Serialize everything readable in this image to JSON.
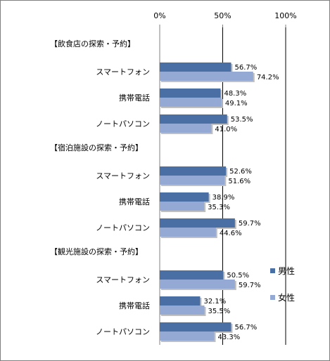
{
  "chart_data": {
    "type": "bar",
    "orientation": "horizontal",
    "xlim": [
      0,
      100
    ],
    "x_ticks": [
      "0%",
      "50%",
      "100%"
    ],
    "grid": true,
    "legend_position": "right",
    "groups": [
      {
        "label": "【飲食店の探索・予約】",
        "categories": [
          {
            "label": "スマートフォン",
            "male": 56.7,
            "female": 74.2,
            "male_text": "56.7%",
            "female_text": "74.2%"
          },
          {
            "label": "携帯電話",
            "male": 48.3,
            "female": 49.1,
            "male_text": "48.3%",
            "female_text": "49.1%"
          },
          {
            "label": "ノートパソコン",
            "male": 53.5,
            "female": 41.0,
            "male_text": "53.5%",
            "female_text": "41.0%"
          }
        ]
      },
      {
        "label": "【宿泊施設の探索・予約】",
        "categories": [
          {
            "label": "スマートフォン",
            "male": 52.6,
            "female": 51.6,
            "male_text": "52.6%",
            "female_text": "51.6%"
          },
          {
            "label": "携帯電話",
            "male": 38.9,
            "female": 35.3,
            "male_text": "38.9%",
            "female_text": "35.3%"
          },
          {
            "label": "ノートパソコン",
            "male": 59.7,
            "female": 44.6,
            "male_text": "59.7%",
            "female_text": "44.6%"
          }
        ]
      },
      {
        "label": "【観光施設の探索・予約】",
        "categories": [
          {
            "label": "スマートフォン",
            "male": 50.5,
            "female": 59.7,
            "male_text": "50.5%",
            "female_text": "59.7%"
          },
          {
            "label": "携帯電話",
            "male": 32.1,
            "female": 35.5,
            "male_text": "32.1%",
            "female_text": "35.5%"
          },
          {
            "label": "ノートパソコン",
            "male": 56.7,
            "female": 43.3,
            "male_text": "56.7%",
            "female_text": "43.3%"
          }
        ]
      }
    ],
    "series": [
      {
        "key": "male",
        "name": "男性",
        "color": "#4a6fa5"
      },
      {
        "key": "female",
        "name": "女性",
        "color": "#94a9d3"
      }
    ]
  }
}
